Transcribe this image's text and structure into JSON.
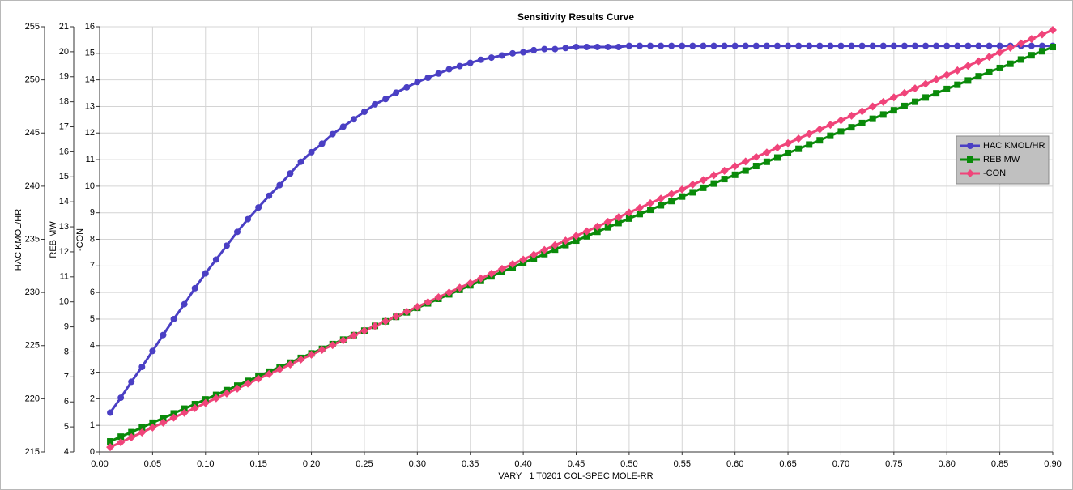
{
  "chart_data": {
    "type": "line",
    "title": "Sensitivity Results Curve",
    "x_label": "VARY   1 T0201 COL-SPEC MOLE-RR",
    "y_label": "HAC KMOL/HR",
    "y2_label": "REB MW",
    "y3_label": "-CON",
    "xlim": [
      0,
      0.9
    ],
    "xticks": [
      {
        "value": 0,
        "label": "0.00"
      },
      0.05,
      {
        "value": 0.1,
        "label": "0.10"
      },
      0.15,
      {
        "value": 0.2,
        "label": "0.20"
      },
      0.25,
      {
        "value": 0.3,
        "label": "0.30"
      },
      0.35,
      {
        "value": 0.4,
        "label": "0.40"
      },
      0.45,
      {
        "value": 0.5,
        "label": "0.50"
      },
      0.55,
      {
        "value": 0.6,
        "label": "0.60"
      },
      0.65,
      {
        "value": 0.7,
        "label": "0.70"
      },
      0.75,
      {
        "value": 0.8,
        "label": "0.80"
      },
      0.85,
      {
        "value": 0.9,
        "label": "0.90"
      }
    ],
    "ylim": [
      215,
      255
    ],
    "yticks": [
      215,
      220,
      225,
      230,
      235,
      240,
      245,
      250,
      255
    ],
    "y2lim": [
      4,
      21
    ],
    "y2ticks": [
      4,
      5,
      6,
      7,
      8,
      9,
      10,
      11,
      12,
      13,
      14,
      15,
      16,
      17,
      18,
      19,
      20,
      21
    ],
    "y3lim": [
      0,
      16
    ],
    "y3ticks": [
      0,
      1,
      2,
      3,
      4,
      5,
      6,
      7,
      8,
      9,
      10,
      11,
      12,
      13,
      14,
      15,
      16
    ],
    "grid": true,
    "legend": "right",
    "x": [
      0.01,
      0.02,
      0.03,
      0.04,
      0.05,
      0.06,
      0.07,
      0.08,
      0.09,
      0.1,
      0.11,
      0.12,
      0.13,
      0.14,
      0.15,
      0.16,
      0.17,
      0.18,
      0.19,
      0.2,
      0.21,
      0.22,
      0.23,
      0.24,
      0.25,
      0.26,
      0.27,
      0.28,
      0.29,
      0.3,
      0.31,
      0.32,
      0.33,
      0.34,
      0.35,
      0.36,
      0.37,
      0.38,
      0.39,
      0.4,
      0.41,
      0.42,
      0.43,
      0.44,
      0.45,
      0.46,
      0.47,
      0.48,
      0.49,
      0.5,
      0.51,
      0.52,
      0.53,
      0.54,
      0.55,
      0.56,
      0.57,
      0.58,
      0.59,
      0.6,
      0.61,
      0.62,
      0.63,
      0.64,
      0.65,
      0.66,
      0.67,
      0.68,
      0.69,
      0.7,
      0.71,
      0.72,
      0.73,
      0.74,
      0.75,
      0.76,
      0.77,
      0.78,
      0.79,
      0.8,
      0.81,
      0.82,
      0.83,
      0.84,
      0.85,
      0.86,
      0.87,
      0.88,
      0.89,
      0.9
    ],
    "series": [
      {
        "name": "HAC KMOL/HR",
        "color": "#4a3fc4",
        "marker": "circle",
        "axis": "y",
        "values": [
          218.7,
          220.1,
          221.6,
          223.0,
          224.5,
          226.0,
          227.5,
          228.9,
          230.4,
          231.8,
          233.1,
          234.4,
          235.7,
          236.9,
          238.0,
          239.1,
          240.1,
          241.2,
          242.3,
          243.2,
          244.0,
          244.9,
          245.6,
          246.3,
          247.0,
          247.7,
          248.2,
          248.8,
          249.3,
          249.8,
          250.2,
          250.6,
          251.0,
          251.3,
          251.6,
          251.9,
          252.1,
          252.3,
          252.5,
          252.6,
          252.8,
          252.9,
          252.9,
          253.0,
          253.1,
          253.1,
          253.1,
          253.1,
          253.1,
          253.2,
          253.2,
          253.2,
          253.2,
          253.2,
          253.2,
          253.2,
          253.2,
          253.2,
          253.2,
          253.2,
          253.2,
          253.2,
          253.2,
          253.2,
          253.2,
          253.2,
          253.2,
          253.2,
          253.2,
          253.2,
          253.2,
          253.2,
          253.2,
          253.2,
          253.2,
          253.2,
          253.2,
          253.2,
          253.2,
          253.2,
          253.2,
          253.2,
          253.2,
          253.2,
          253.2,
          253.2,
          253.2,
          253.2,
          253.2,
          253.2
        ]
      },
      {
        "name": "REB MW",
        "color": "#0a8a0a",
        "marker": "square",
        "axis": "y2",
        "values": [
          4.42,
          4.61,
          4.79,
          4.98,
          5.17,
          5.35,
          5.54,
          5.73,
          5.91,
          6.1,
          6.28,
          6.47,
          6.65,
          6.84,
          7.02,
          7.21,
          7.39,
          7.57,
          7.76,
          7.94,
          8.12,
          8.31,
          8.49,
          8.67,
          8.85,
          9.04,
          9.22,
          9.4,
          9.58,
          9.76,
          9.94,
          10.12,
          10.3,
          10.48,
          10.66,
          10.84,
          11.02,
          11.2,
          11.38,
          11.56,
          11.73,
          11.91,
          12.09,
          12.27,
          12.45,
          12.62,
          12.8,
          12.98,
          13.15,
          13.33,
          13.51,
          13.68,
          13.86,
          14.03,
          14.21,
          14.38,
          14.56,
          14.73,
          14.91,
          15.08,
          15.25,
          15.43,
          15.6,
          15.77,
          15.95,
          16.12,
          16.29,
          16.46,
          16.64,
          16.81,
          16.98,
          17.15,
          17.32,
          17.49,
          17.66,
          17.83,
          18.0,
          18.17,
          18.34,
          18.51,
          18.68,
          18.85,
          19.02,
          19.19,
          19.35,
          19.52,
          19.69,
          19.86,
          20.02,
          20.19
        ]
      },
      {
        "name": "-CON",
        "color": "#f0447a",
        "marker": "diamond",
        "axis": "y3",
        "values": [
          0.18,
          0.36,
          0.55,
          0.73,
          0.92,
          1.1,
          1.29,
          1.47,
          1.65,
          1.84,
          2.02,
          2.2,
          2.38,
          2.57,
          2.75,
          2.93,
          3.11,
          3.29,
          3.48,
          3.66,
          3.84,
          4.02,
          4.2,
          4.38,
          4.56,
          4.74,
          4.92,
          5.1,
          5.28,
          5.46,
          5.64,
          5.82,
          6.0,
          6.18,
          6.35,
          6.53,
          6.71,
          6.89,
          7.07,
          7.24,
          7.42,
          7.6,
          7.78,
          7.95,
          8.13,
          8.3,
          8.48,
          8.66,
          8.83,
          9.01,
          9.18,
          9.36,
          9.53,
          9.71,
          9.88,
          10.06,
          10.23,
          10.41,
          10.58,
          10.75,
          10.93,
          11.1,
          11.27,
          11.45,
          11.62,
          11.79,
          11.97,
          12.14,
          12.31,
          12.48,
          12.65,
          12.82,
          13.0,
          13.17,
          13.34,
          13.51,
          13.68,
          13.85,
          14.02,
          14.19,
          14.36,
          14.53,
          14.7,
          14.87,
          15.04,
          15.21,
          15.37,
          15.54,
          15.71,
          15.88
        ]
      }
    ]
  }
}
